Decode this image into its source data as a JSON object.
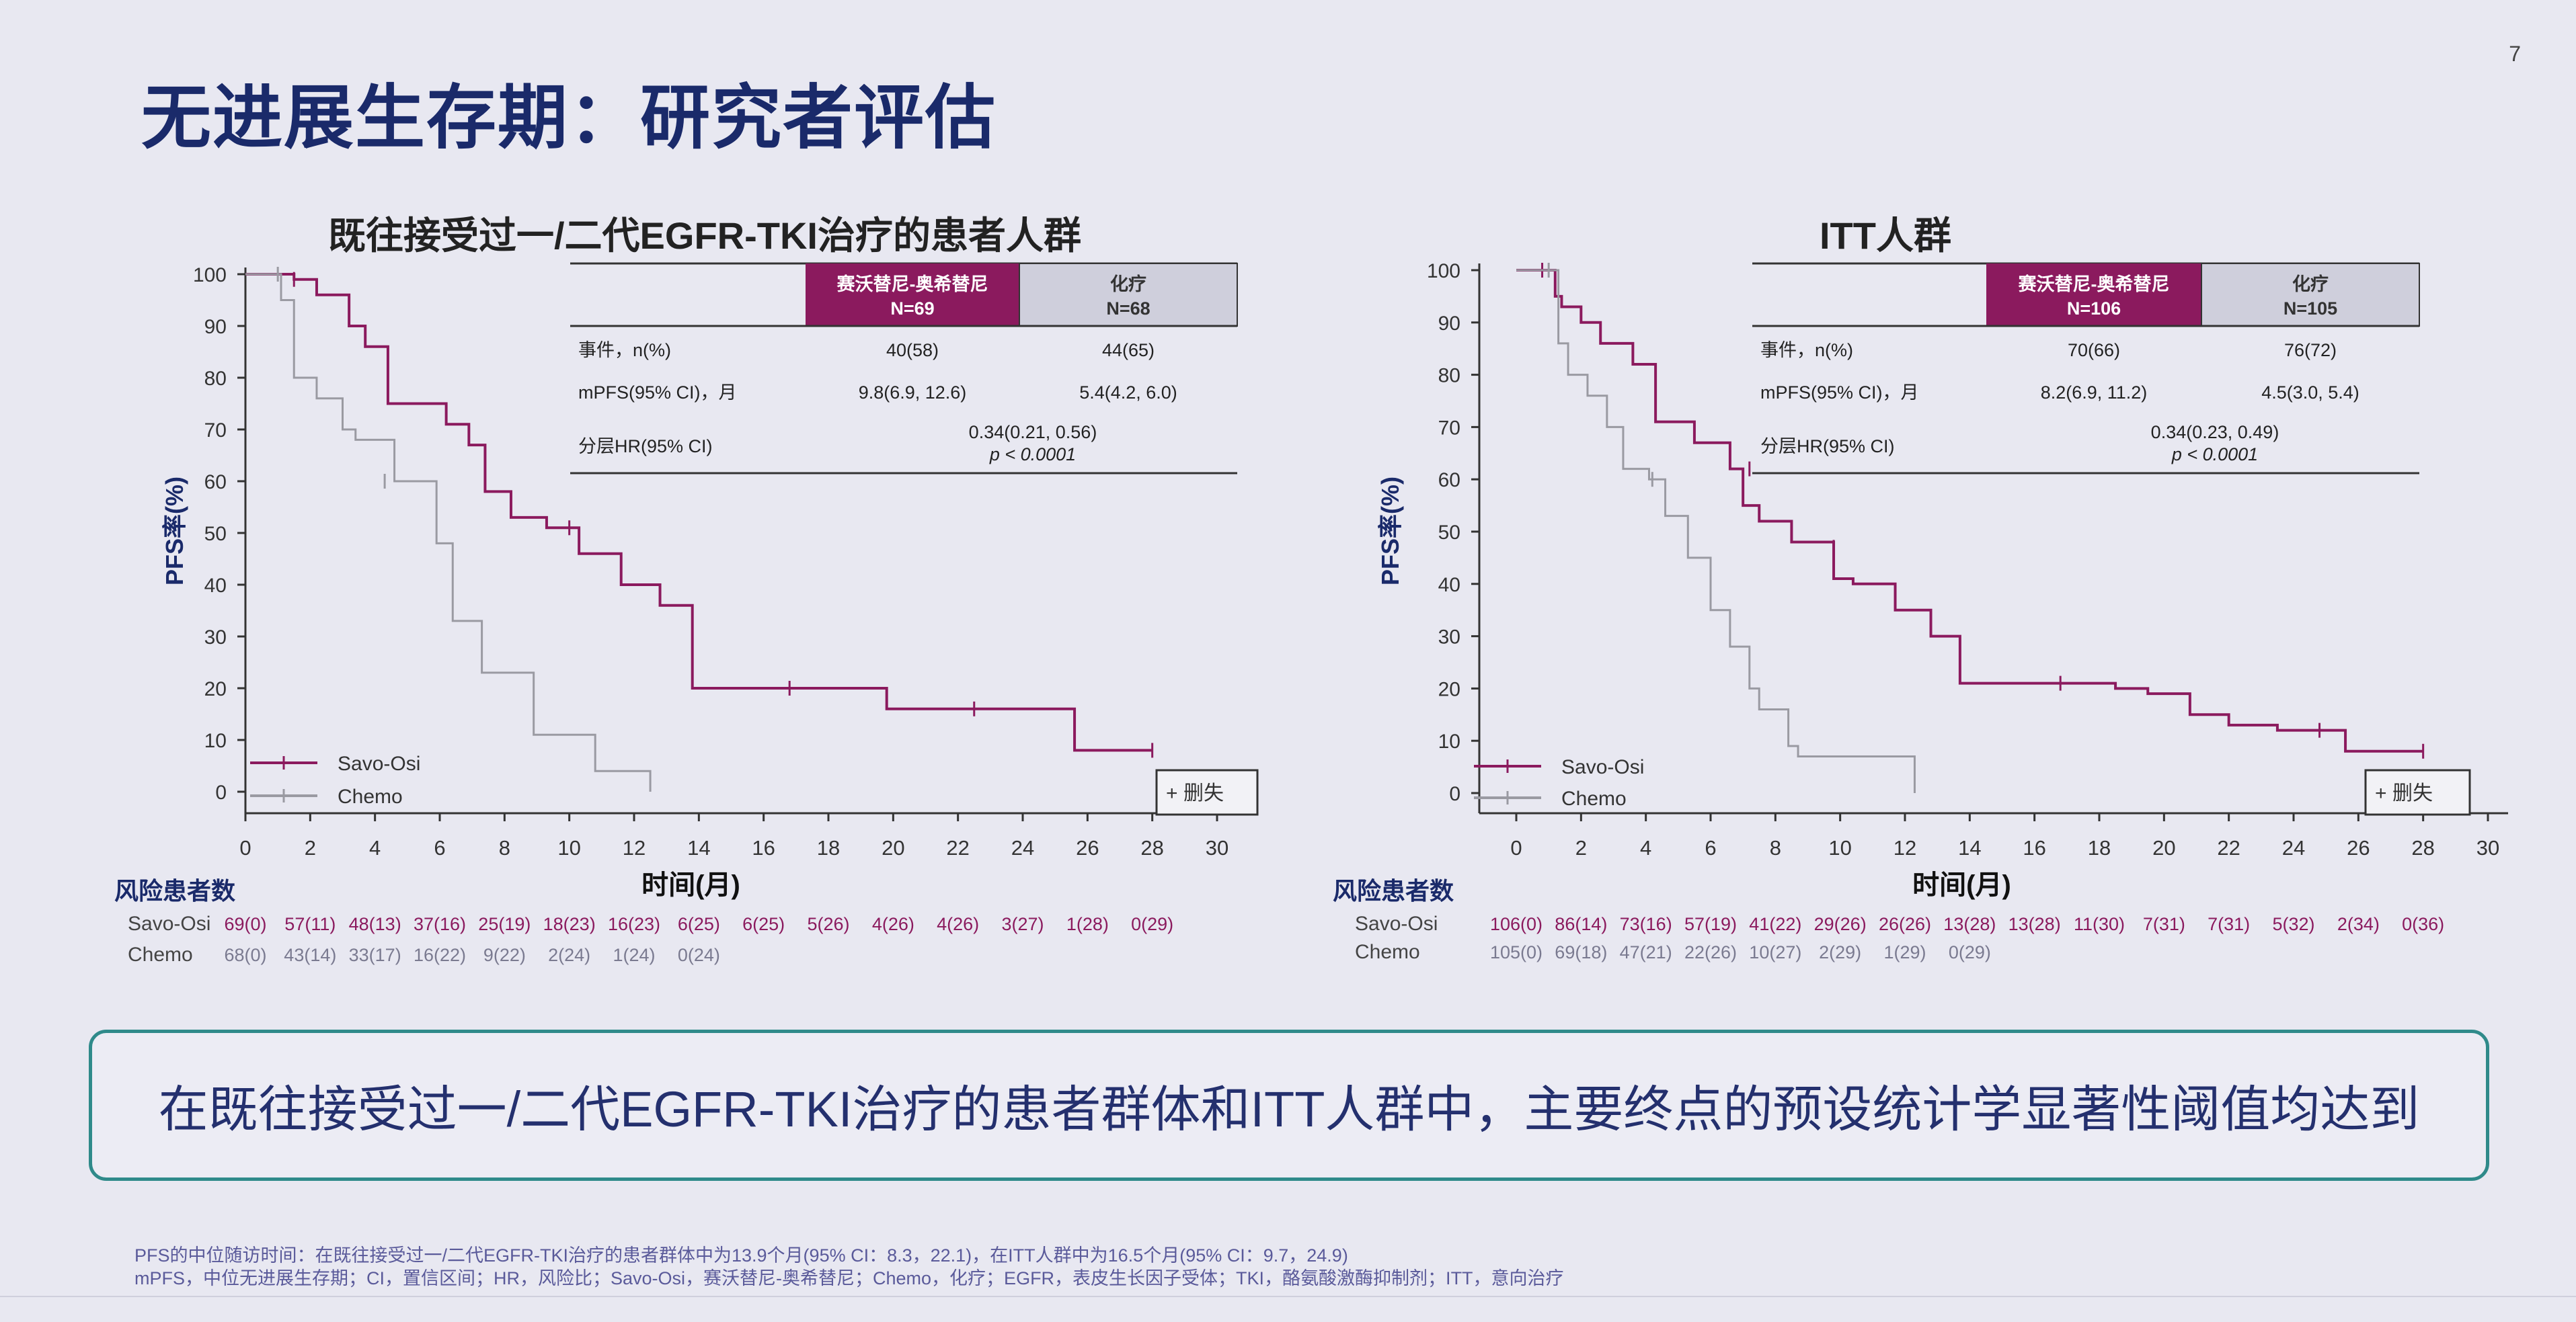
{
  "slide": {
    "title": "无进展生存期：研究者评估",
    "page_number": "7",
    "conclusion": "在既往接受过一/二代EGFR-TKI治疗的患者群体和ITT人群中，主要终点的预设统计学显著性阈值均达到",
    "footnotes": [
      "PFS的中位随访时间：在既往接受过一/二代EGFR-TKI治疗的患者群体中为13.9个月(95% CI：8.3，22.1)，在ITT人群中为16.5个月(95% CI：9.7，24.9)",
      "mPFS，中位无进展生存期；CI，置信区间；HR，风险比；Savo-Osi，赛沃替尼-奥希替尼；Chemo，化疗；EGFR，表皮生长因子受体；TKI，酪氨酸激酶抑制剂；ITT，意向治疗"
    ]
  },
  "colors": {
    "savo": "#8b1a5e",
    "chemo": "#9a9aa2",
    "title": "#1a2a6a"
  },
  "chart_data": [
    {
      "type": "line",
      "title": "既往接受过一/二代EGFR-TKI治疗的患者人群",
      "xlabel": "时间(月)",
      "ylabel": "PFS率(%)",
      "xlim": [
        0,
        30
      ],
      "ylim": [
        0,
        100
      ],
      "xticks": [
        "0",
        "2",
        "4",
        "6",
        "8",
        "10",
        "12",
        "14",
        "16",
        "18",
        "20",
        "22",
        "24",
        "26",
        "28",
        "30"
      ],
      "yticks": [
        "0",
        "10",
        "20",
        "30",
        "40",
        "50",
        "60",
        "70",
        "80",
        "90",
        "100"
      ],
      "legend": {
        "savo": "Savo-Osi",
        "chemo": "Chemo",
        "censor": "删失"
      },
      "series": [
        {
          "name": "Savo-Osi",
          "x": [
            0,
            1.5,
            2.2,
            3.2,
            3.7,
            4.4,
            6.2,
            6.9,
            7.4,
            8.2,
            9.3,
            10.3,
            11.6,
            12.8,
            13.8,
            16.8,
            19.8,
            24.3,
            25.6,
            28.0
          ],
          "y": [
            100,
            99,
            96,
            90,
            86,
            75,
            71,
            67,
            58,
            53,
            51,
            46,
            40,
            36,
            20,
            20,
            16,
            16,
            8,
            8
          ],
          "censors": [
            [
              1.5,
              99
            ],
            [
              10.0,
              51
            ],
            [
              16.8,
              20
            ],
            [
              22.5,
              16
            ],
            [
              28.0,
              8
            ]
          ]
        },
        {
          "name": "Chemo",
          "x": [
            0,
            1.1,
            1.5,
            2.2,
            3.0,
            3.4,
            4.6,
            5.9,
            6.4,
            7.3,
            8.9,
            10.8,
            12.5
          ],
          "y": [
            100,
            95,
            80,
            76,
            70,
            68,
            60,
            48,
            33,
            23,
            11,
            4,
            0
          ],
          "censors": [
            [
              1.0,
              100
            ],
            [
              4.3,
              60
            ]
          ]
        }
      ],
      "table": {
        "header_savo": [
          "赛沃替尼-奥希替尼",
          "N=69"
        ],
        "header_chemo": [
          "化疗",
          "N=68"
        ],
        "rows": [
          {
            "label": "事件，n(%)",
            "savo": "40(58)",
            "chemo": "44(65)"
          },
          {
            "label": "mPFS(95% CI)，月",
            "savo": "9.8(6.9, 12.6)",
            "chemo": "5.4(4.2, 6.0)"
          },
          {
            "label": "分层HR(95% CI)",
            "hr": "0.34(0.21, 0.56)",
            "p": "p < 0.0001"
          }
        ]
      },
      "risk": {
        "title": "风险患者数",
        "savo_label": "Savo-Osi",
        "chemo_label": "Chemo",
        "savo": [
          "69(0)",
          "57(11)",
          "48(13)",
          "37(16)",
          "25(19)",
          "18(23)",
          "16(23)",
          "6(25)",
          "6(25)",
          "5(26)",
          "4(26)",
          "4(26)",
          "3(27)",
          "1(28)",
          "0(29)"
        ],
        "chemo": [
          "68(0)",
          "43(14)",
          "33(17)",
          "16(22)",
          "9(22)",
          "2(24)",
          "1(24)",
          "0(24)"
        ]
      }
    },
    {
      "type": "line",
      "title": "ITT人群",
      "xlabel": "时间(月)",
      "ylabel": "PFS率(%)",
      "xlim": [
        0,
        30
      ],
      "ylim": [
        0,
        100
      ],
      "xticks": [
        "0",
        "2",
        "4",
        "6",
        "8",
        "10",
        "12",
        "14",
        "16",
        "18",
        "20",
        "22",
        "24",
        "26",
        "28",
        "30"
      ],
      "yticks": [
        "0",
        "10",
        "20",
        "30",
        "40",
        "50",
        "60",
        "70",
        "80",
        "90",
        "100"
      ],
      "legend": {
        "savo": "Savo-Osi",
        "chemo": "Chemo",
        "censor": "删失"
      },
      "series": [
        {
          "name": "Savo-Osi",
          "x": [
            0,
            1.2,
            1.4,
            2.0,
            2.6,
            3.6,
            4.3,
            5.5,
            6.6,
            7.0,
            7.5,
            8.5,
            9.8,
            10.4,
            11.7,
            12.8,
            13.7,
            15.0,
            18.5,
            19.5,
            20.8,
            22.0,
            23.5,
            25.6,
            28.0
          ],
          "y": [
            100,
            95,
            93,
            90,
            86,
            82,
            71,
            67,
            62,
            55,
            52,
            48,
            41,
            40,
            35,
            30,
            21,
            21,
            20,
            19,
            15,
            13,
            12,
            8,
            8
          ],
          "censors": [
            [
              0.8,
              100
            ],
            [
              7.2,
              62
            ],
            [
              9.8,
              47
            ],
            [
              16.8,
              21
            ],
            [
              24.8,
              12
            ],
            [
              28.0,
              8
            ]
          ]
        },
        {
          "name": "Chemo",
          "x": [
            0,
            1.3,
            1.6,
            2.2,
            2.8,
            3.3,
            4.1,
            4.6,
            5.3,
            6.0,
            6.6,
            7.2,
            7.5,
            8.4,
            8.7,
            12.3
          ],
          "y": [
            100,
            86,
            80,
            76,
            70,
            62,
            60,
            53,
            45,
            35,
            28,
            20,
            16,
            9,
            7,
            0
          ],
          "censors": [
            [
              1.0,
              100
            ],
            [
              4.2,
              60
            ]
          ]
        }
      ],
      "table": {
        "header_savo": [
          "赛沃替尼-奥希替尼",
          "N=106"
        ],
        "header_chemo": [
          "化疗",
          "N=105"
        ],
        "rows": [
          {
            "label": "事件，n(%)",
            "savo": "70(66)",
            "chemo": "76(72)"
          },
          {
            "label": "mPFS(95% CI)，月",
            "savo": "8.2(6.9, 11.2)",
            "chemo": "4.5(3.0, 5.4)"
          },
          {
            "label": "分层HR(95% CI)",
            "hr": "0.34(0.23, 0.49)",
            "p": "p < 0.0001"
          }
        ]
      },
      "risk": {
        "title": "风险患者数",
        "savo_label": "Savo-Osi",
        "chemo_label": "Chemo",
        "savo": [
          "106(0)",
          "86(14)",
          "73(16)",
          "57(19)",
          "41(22)",
          "29(26)",
          "26(26)",
          "13(28)",
          "13(28)",
          "11(30)",
          "7(31)",
          "7(31)",
          "5(32)",
          "2(34)",
          "0(36)"
        ],
        "chemo": [
          "105(0)",
          "69(18)",
          "47(21)",
          "22(26)",
          "10(27)",
          "2(29)",
          "1(29)",
          "0(29)"
        ]
      }
    }
  ]
}
